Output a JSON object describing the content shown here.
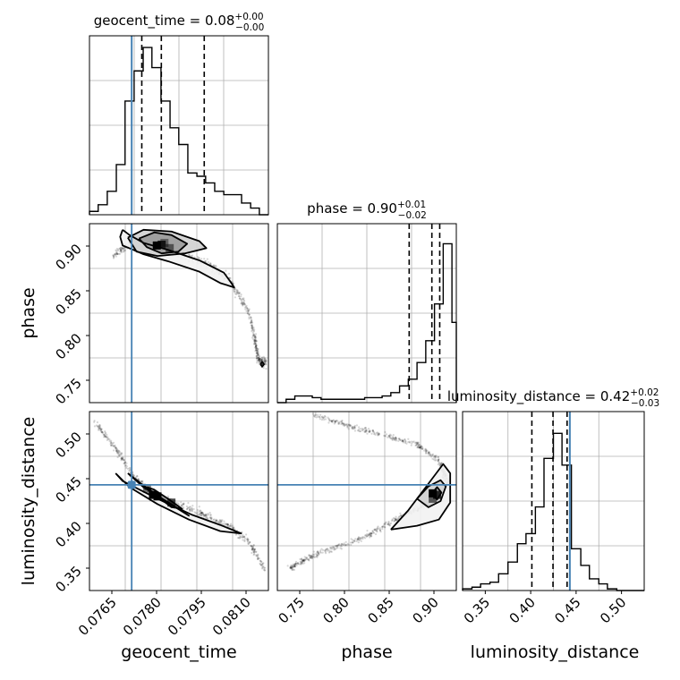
{
  "chart_data": {
    "type": "corner",
    "parameters": [
      "geocent_time",
      "phase",
      "luminosity_distance"
    ],
    "truths": {
      "geocent_time": 0.07726,
      "phase": null,
      "luminosity_distance": 0.443
    },
    "truth_color": "#4682b4",
    "panels": [
      {
        "name": "geocent_time-hist",
        "type": "histogram",
        "param": "geocent_time",
        "title_label": "geocent_time = 0.08",
        "title_plus": "+0.00",
        "title_minus": "−0.00",
        "xlim": [
          0.07605,
          0.08118
        ],
        "ylim": [
          0,
          1
        ],
        "quantiles": [
          0.07755,
          0.07811,
          0.07934
        ],
        "bins": [
          0.07605,
          0.0763,
          0.07656,
          0.07682,
          0.07707,
          0.07733,
          0.07759,
          0.07784,
          0.0781,
          0.07836,
          0.07861,
          0.07887,
          0.07913,
          0.07938,
          0.07964,
          0.0799,
          0.08015,
          0.08041,
          0.08067,
          0.08092,
          0.08118
        ],
        "counts": [
          0.02,
          0.06,
          0.14,
          0.3,
          0.68,
          0.86,
          1.0,
          0.88,
          0.68,
          0.52,
          0.42,
          0.25,
          0.23,
          0.19,
          0.14,
          0.12,
          0.12,
          0.07,
          0.04,
          0.0
        ],
        "ticks_x": [],
        "ticks_y": []
      },
      {
        "name": "phase-hist",
        "type": "histogram",
        "param": "phase",
        "title_label": "phase = 0.90",
        "title_plus": "+0.01",
        "title_minus": "−0.02",
        "xlim": [
          0.72,
          0.925
        ],
        "ylim": [
          0,
          1
        ],
        "quantiles": [
          0.871,
          0.897,
          0.906
        ],
        "bins": [
          0.72,
          0.73,
          0.74,
          0.75,
          0.76,
          0.77,
          0.78,
          0.79,
          0.8,
          0.81,
          0.82,
          0.83,
          0.84,
          0.85,
          0.86,
          0.87,
          0.88,
          0.89,
          0.9,
          0.91,
          0.92,
          0.925
        ],
        "counts": [
          0.0,
          0.02,
          0.04,
          0.04,
          0.03,
          0.02,
          0.02,
          0.02,
          0.02,
          0.02,
          0.03,
          0.03,
          0.04,
          0.06,
          0.1,
          0.14,
          0.24,
          0.37,
          0.59,
          0.95,
          0.48,
          0.0
        ],
        "ticks_x": [],
        "ticks_y": []
      },
      {
        "name": "luminosity_distance-hist",
        "type": "histogram",
        "param": "luminosity_distance",
        "title_label": "luminosity_distance = 0.42",
        "title_plus": "+0.02",
        "title_minus": "−0.03",
        "xlim": [
          0.306,
          0.538
        ],
        "ylim": [
          0,
          1
        ],
        "quantiles": [
          0.3945,
          0.4215,
          0.4395
        ],
        "bins": [
          0.306,
          0.318,
          0.329,
          0.341,
          0.352,
          0.364,
          0.376,
          0.387,
          0.399,
          0.41,
          0.422,
          0.433,
          0.445,
          0.457,
          0.468,
          0.48,
          0.491,
          0.503,
          0.514,
          0.526,
          0.538
        ],
        "counts": [
          0.01,
          0.02,
          0.04,
          0.05,
          0.1,
          0.17,
          0.28,
          0.34,
          0.5,
          0.79,
          0.94,
          0.75,
          0.25,
          0.15,
          0.07,
          0.04,
          0.01,
          0.0,
          0.0,
          0.0
        ],
        "ticks_x": [
          "0.35",
          "0.40",
          "0.45",
          "0.50"
        ],
        "ticks_y": []
      },
      {
        "name": "phase-vs-geocent_time",
        "type": "2d",
        "x": "geocent_time",
        "y": "phase",
        "xlim": [
          0.07605,
          0.08118
        ],
        "ylim": [
          0.72,
          0.925
        ],
        "ticks_x": [],
        "ticks_y": [
          "0.75",
          "0.80",
          "0.85",
          "0.90"
        ],
        "ridge": [
          [
            0.0767,
            0.888
          ],
          [
            0.0772,
            0.902
          ],
          [
            0.0778,
            0.9
          ],
          [
            0.0785,
            0.893
          ],
          [
            0.0795,
            0.878
          ],
          [
            0.0801,
            0.858
          ],
          [
            0.0806,
            0.826
          ],
          [
            0.0808,
            0.79
          ],
          [
            0.0809,
            0.768
          ],
          [
            0.0811,
            0.766
          ]
        ],
        "spread": [
          0.0,
          0.012
        ],
        "contours": [
          [
            [
              0.07747,
              0.908
            ],
            [
              0.07791,
              0.915
            ],
            [
              0.0784,
              0.912
            ],
            [
              0.07885,
              0.902
            ],
            [
              0.0786,
              0.893
            ],
            [
              0.07812,
              0.891
            ],
            [
              0.0777,
              0.898
            ],
            [
              0.07747,
              0.908
            ]
          ],
          [
            [
              0.07715,
              0.909
            ],
            [
              0.0776,
              0.918
            ],
            [
              0.0784,
              0.916
            ],
            [
              0.0792,
              0.905
            ],
            [
              0.0794,
              0.897
            ],
            [
              0.0788,
              0.891
            ],
            [
              0.078,
              0.888
            ],
            [
              0.0774,
              0.893
            ],
            [
              0.07715,
              0.909
            ]
          ],
          [
            [
              0.077,
              0.918
            ],
            [
              0.0772,
              0.912
            ],
            [
              0.0776,
              0.903
            ],
            [
              0.0783,
              0.895
            ],
            [
              0.0792,
              0.883
            ],
            [
              0.0799,
              0.869
            ],
            [
              0.0801,
              0.858
            ],
            [
              0.0802,
              0.852
            ],
            [
              0.0798,
              0.857
            ],
            [
              0.0792,
              0.87
            ],
            [
              0.0783,
              0.882
            ],
            [
              0.0776,
              0.89
            ],
            [
              0.07725,
              0.896
            ],
            [
              0.077,
              0.9
            ],
            [
              0.07693,
              0.91
            ],
            [
              0.077,
              0.918
            ]
          ]
        ],
        "cores": [
          [
            0.07798,
            0.9,
            1.0
          ],
          [
            0.07812,
            0.901,
            0.8
          ],
          [
            0.07835,
            0.897,
            0.5
          ],
          [
            0.0782,
            0.903,
            0.4
          ]
        ],
        "isolated_contour": [
          [
            0.08095,
            0.764
          ],
          [
            0.081,
            0.767
          ],
          [
            0.08106,
            0.764
          ],
          [
            0.081,
            0.761
          ],
          [
            0.08095,
            0.764
          ]
        ]
      },
      {
        "name": "luminosity_distance-vs-geocent_time",
        "type": "2d",
        "x": "geocent_time",
        "y": "luminosity_distance",
        "xlim": [
          0.07605,
          0.08118
        ],
        "ylim": [
          0.306,
          0.538
        ],
        "ticks_x": [
          "0.0765",
          "0.0780",
          "0.0795",
          "0.0810"
        ],
        "ticks_y": [
          "0.35",
          "0.40",
          "0.45",
          "0.50"
        ],
        "ridge": [
          [
            0.0762,
            0.525
          ],
          [
            0.0768,
            0.49
          ],
          [
            0.0773,
            0.455
          ],
          [
            0.0778,
            0.432
          ],
          [
            0.0785,
            0.419
          ],
          [
            0.0793,
            0.405
          ],
          [
            0.08,
            0.39
          ],
          [
            0.0806,
            0.37
          ],
          [
            0.0811,
            0.332
          ]
        ],
        "spread": [
          0.0,
          0.01
        ],
        "contours": [
          [
            [
              0.0777,
              0.44
            ],
            [
              0.078,
              0.428
            ],
            [
              0.0784,
              0.414
            ],
            [
              0.0787,
              0.412
            ],
            [
              0.0783,
              0.425
            ],
            [
              0.0779,
              0.437
            ],
            [
              0.0777,
              0.44
            ]
          ],
          [
            [
              0.07715,
              0.458
            ],
            [
              0.0776,
              0.44
            ],
            [
              0.0785,
              0.415
            ],
            [
              0.0789,
              0.403
            ],
            [
              0.0783,
              0.42
            ],
            [
              0.0776,
              0.442
            ],
            [
              0.07715,
              0.458
            ]
          ],
          [
            [
              0.0768,
              0.458
            ],
            [
              0.077,
              0.448
            ],
            [
              0.078,
              0.425
            ],
            [
              0.079,
              0.404
            ],
            [
              0.0798,
              0.391
            ],
            [
              0.0804,
              0.38
            ],
            [
              0.0798,
              0.383
            ],
            [
              0.0789,
              0.398
            ],
            [
              0.078,
              0.418
            ],
            [
              0.0772,
              0.44
            ],
            [
              0.0768,
              0.458
            ]
          ]
        ],
        "cores": [
          [
            0.07787,
            0.43,
            1.0
          ],
          [
            0.078,
            0.428,
            1.0
          ],
          [
            0.0784,
            0.42,
            0.7
          ],
          [
            0.0777,
            0.438,
            0.5
          ]
        ]
      },
      {
        "name": "luminosity_distance-vs-phase",
        "type": "2d",
        "x": "phase",
        "y": "luminosity_distance",
        "xlim": [
          0.72,
          0.925
        ],
        "ylim": [
          0.306,
          0.538
        ],
        "ticks_x": [
          "0.75",
          "0.80",
          "0.85",
          "0.90"
        ],
        "ticks_y": [],
        "ridge": [
          [
            0.735,
            0.335
          ],
          [
            0.75,
            0.345
          ],
          [
            0.78,
            0.36
          ],
          [
            0.82,
            0.375
          ],
          [
            0.85,
            0.395
          ],
          [
            0.88,
            0.412
          ],
          [
            0.905,
            0.428
          ],
          [
            0.915,
            0.445
          ],
          [
            0.905,
            0.475
          ],
          [
            0.88,
            0.495
          ],
          [
            0.84,
            0.508
          ],
          [
            0.8,
            0.52
          ],
          [
            0.76,
            0.534
          ]
        ],
        "spread": [
          0.006,
          0.008
        ],
        "contours": [
          [
            [
              0.897,
              0.432
            ],
            [
              0.903,
              0.44
            ],
            [
              0.908,
              0.433
            ],
            [
              0.903,
              0.424
            ],
            [
              0.897,
              0.432
            ]
          ],
          [
            [
              0.88,
              0.425
            ],
            [
              0.893,
              0.441
            ],
            [
              0.907,
              0.449
            ],
            [
              0.913,
              0.441
            ],
            [
              0.907,
              0.422
            ],
            [
              0.893,
              0.414
            ],
            [
              0.88,
              0.425
            ]
          ],
          [
            [
              0.85,
              0.385
            ],
            [
              0.87,
              0.41
            ],
            [
              0.89,
              0.44
            ],
            [
              0.91,
              0.47
            ],
            [
              0.918,
              0.458
            ],
            [
              0.918,
              0.42
            ],
            [
              0.905,
              0.398
            ],
            [
              0.88,
              0.39
            ],
            [
              0.85,
              0.385
            ]
          ]
        ],
        "cores": [
          [
            0.898,
            0.432,
            1.0
          ],
          [
            0.903,
            0.43,
            0.8
          ],
          [
            0.898,
            0.425,
            0.6
          ]
        ]
      }
    ],
    "axis_labels": {
      "x": [
        "geocent_time",
        "phase",
        "luminosity_distance"
      ],
      "y": [
        "phase",
        "luminosity_distance"
      ]
    }
  }
}
